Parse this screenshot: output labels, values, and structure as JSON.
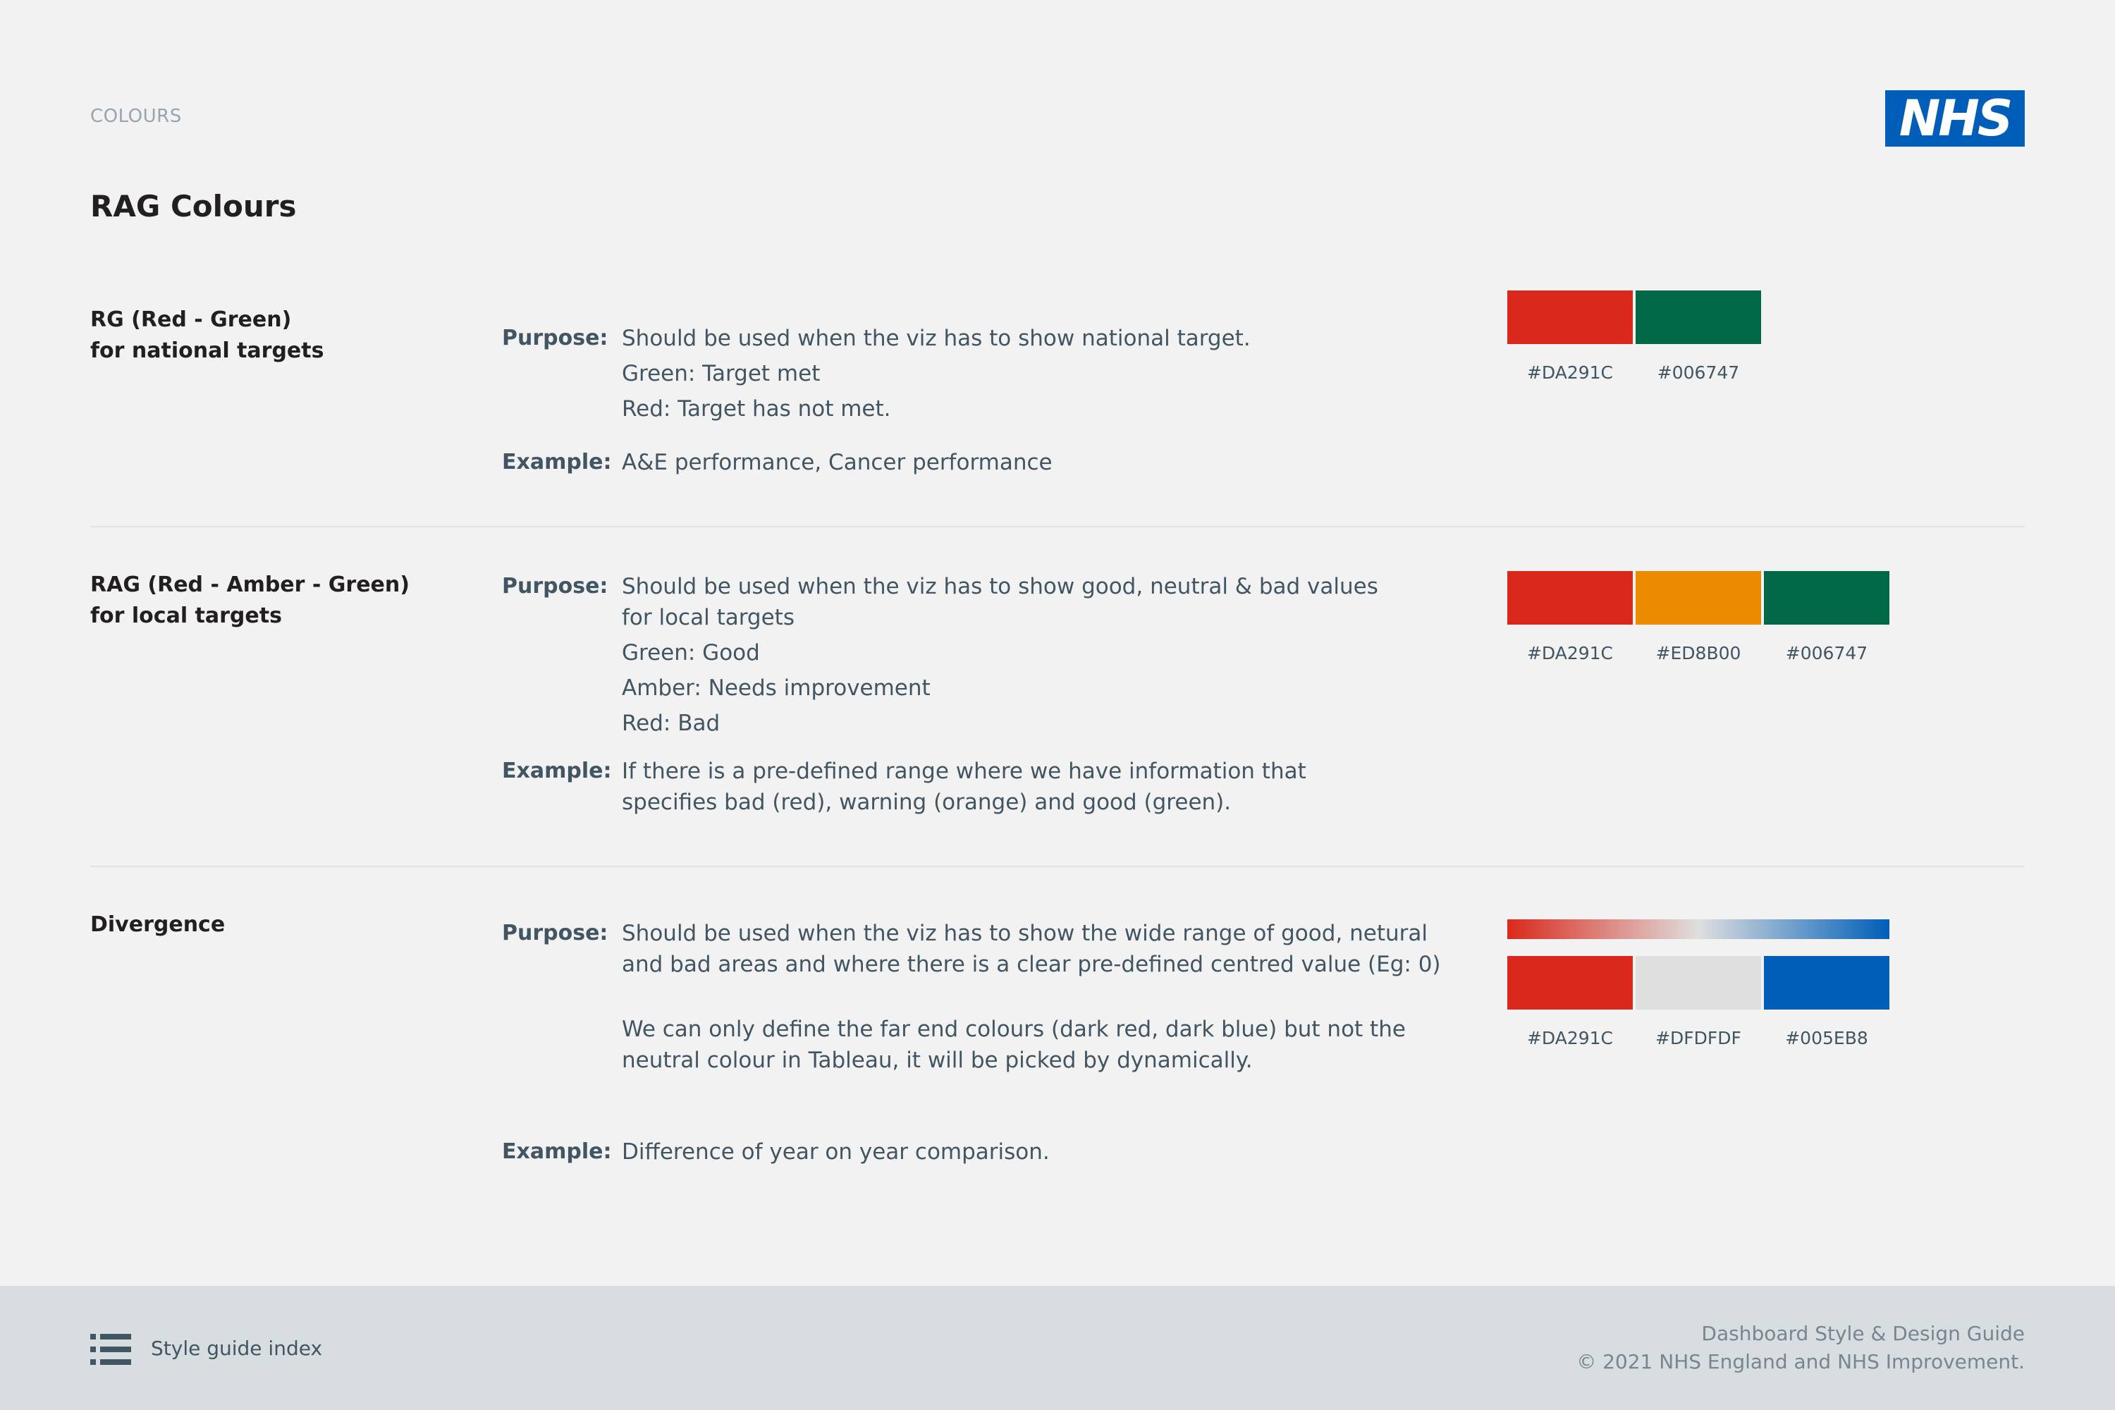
{
  "header": {
    "section_label": "COLOURS",
    "logo_text": "NHS",
    "page_title": "RAG Colours"
  },
  "rows": [
    {
      "name_lines": [
        "RG (Red -  Green)",
        "for national targets"
      ],
      "purpose_label": "Purpose:",
      "purpose_lines": [
        "Should be used when the viz has to show national target.",
        "Green: Target met",
        "Red: Target has not met."
      ],
      "example_label": "Example:",
      "example_lines": [
        "A&E performance, Cancer performance"
      ],
      "swatches": [
        {
          "color": "#DA291C",
          "label": "#DA291C"
        },
        {
          "color": "#006747",
          "label": "#006747"
        }
      ]
    },
    {
      "name_lines": [
        "RAG (Red - Amber - Green)",
        "for local targets"
      ],
      "purpose_label": "Purpose:",
      "purpose_lines": [
        "Should be used when the viz has to show good, neutral & bad values",
        "for local targets",
        "Green: Good",
        "Amber: Needs improvement",
        "Red: Bad"
      ],
      "example_label": "Example:",
      "example_lines": [
        "If there is a pre-defined range where we have information that",
        "specifies bad (red), warning (orange) and good (green)."
      ],
      "swatches": [
        {
          "color": "#DA291C",
          "label": "#DA291C"
        },
        {
          "color": "#ED8B00",
          "label": "#ED8B00"
        },
        {
          "color": "#006747",
          "label": "#006747"
        }
      ]
    },
    {
      "name_lines": [
        "Divergence"
      ],
      "purpose_label": "Purpose:",
      "purpose_lines": [
        "Should be used when the viz has to show the wide range of good, netural",
        "and bad areas and where there is a clear pre-defined centred value (Eg: 0)"
      ],
      "note_lines": [
        "We can only define the far end colours (dark red, dark blue) but not the",
        "neutral colour in Tableau, it will be picked by dynamically."
      ],
      "example_label": "Example:",
      "example_lines": [
        "Difference of year on year comparison."
      ],
      "gradient": [
        "#DA291C",
        "#DFDFDF",
        "#005EB8"
      ],
      "swatches": [
        {
          "color": "#DA291C",
          "label": "#DA291C"
        },
        {
          "color": "#DFDFDF",
          "label": "#DFDFDF"
        },
        {
          "color": "#005EB8",
          "label": "#005EB8"
        }
      ]
    }
  ],
  "footer": {
    "menu_icon": "list-icon",
    "index_link": "Style guide index",
    "guide_title": "Dashboard Style & Design Guide",
    "copyright": "© 2021 NHS England and NHS Improvement."
  }
}
